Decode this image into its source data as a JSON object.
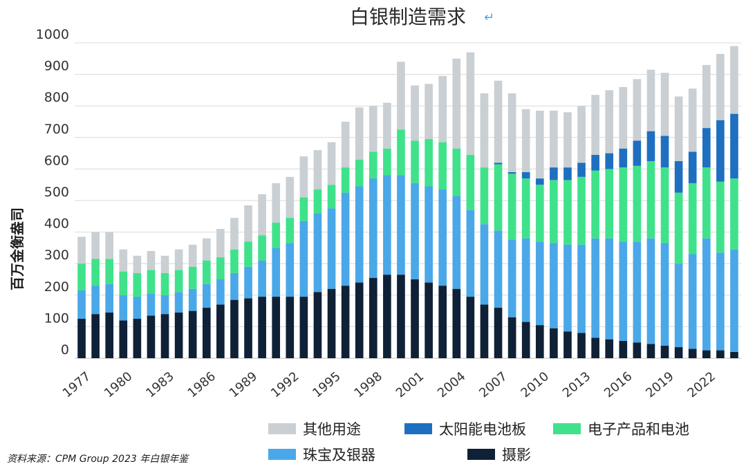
{
  "chart_data": {
    "type": "bar",
    "stacked": true,
    "title": "白银制造需求",
    "ylabel": "百万金衡盎司",
    "xlabel": "",
    "ylim": [
      0,
      1000
    ],
    "yticks": [
      0,
      100,
      200,
      300,
      400,
      500,
      600,
      700,
      800,
      900,
      1000
    ],
    "grid": true,
    "legend_position": "bottom",
    "x_tick_labels": [
      "1977",
      "1980",
      "1983",
      "1986",
      "1989",
      "1992",
      "1995",
      "1998",
      "2001",
      "2004",
      "2007",
      "2010",
      "2013",
      "2016",
      "2019",
      "2022"
    ],
    "categories": [
      "1977",
      "1978",
      "1979",
      "1980",
      "1981",
      "1982",
      "1983",
      "1984",
      "1985",
      "1986",
      "1987",
      "1988",
      "1989",
      "1990",
      "1991",
      "1992",
      "1993",
      "1994",
      "1995",
      "1996",
      "1997",
      "1998",
      "1999",
      "2000",
      "2001",
      "2002",
      "2003",
      "2004",
      "2005",
      "2006",
      "2007",
      "2008",
      "2009",
      "2010",
      "2011",
      "2012",
      "2013",
      "2014",
      "2015",
      "2016",
      "2017",
      "2018",
      "2019",
      "2020",
      "2021",
      "2022",
      "2023",
      "2024"
    ],
    "series": [
      {
        "name": "摄影",
        "color": "#0f2137",
        "values": [
          125,
          140,
          145,
          120,
          125,
          135,
          140,
          145,
          150,
          160,
          170,
          185,
          190,
          195,
          195,
          195,
          195,
          210,
          220,
          230,
          240,
          255,
          265,
          265,
          250,
          240,
          230,
          220,
          195,
          170,
          160,
          130,
          115,
          105,
          95,
          85,
          80,
          65,
          60,
          55,
          50,
          45,
          40,
          35,
          30,
          25,
          25,
          20
        ]
      },
      {
        "name": "珠宝及银器",
        "color": "#4aa8e8",
        "values": [
          90,
          90,
          90,
          80,
          70,
          70,
          60,
          65,
          70,
          75,
          80,
          85,
          100,
          115,
          155,
          170,
          240,
          250,
          255,
          295,
          305,
          315,
          315,
          315,
          305,
          305,
          305,
          295,
          275,
          255,
          245,
          245,
          265,
          265,
          270,
          275,
          280,
          315,
          320,
          315,
          320,
          335,
          325,
          265,
          300,
          355,
          310,
          325
        ]
      },
      {
        "name": "电子产品和电池",
        "color": "#3fe28a",
        "values": [
          85,
          85,
          80,
          75,
          75,
          75,
          70,
          70,
          70,
          75,
          70,
          75,
          80,
          80,
          80,
          80,
          75,
          75,
          75,
          80,
          85,
          85,
          85,
          145,
          135,
          150,
          150,
          150,
          175,
          180,
          210,
          210,
          190,
          180,
          200,
          205,
          215,
          215,
          220,
          235,
          240,
          245,
          240,
          225,
          225,
          225,
          225,
          225
        ]
      },
      {
        "name": "太阳能电池板",
        "color": "#1f6fc0",
        "values": [
          0,
          0,
          0,
          0,
          0,
          0,
          0,
          0,
          0,
          0,
          0,
          0,
          0,
          0,
          0,
          0,
          0,
          0,
          0,
          0,
          0,
          0,
          0,
          0,
          0,
          0,
          0,
          0,
          0,
          0,
          5,
          5,
          20,
          20,
          40,
          40,
          45,
          50,
          50,
          60,
          80,
          95,
          100,
          100,
          100,
          125,
          195,
          205
        ]
      },
      {
        "name": "其他用途",
        "color": "#c9cfd3",
        "values": [
          85,
          85,
          85,
          70,
          55,
          60,
          55,
          65,
          70,
          70,
          90,
          100,
          115,
          130,
          125,
          130,
          130,
          125,
          135,
          145,
          165,
          145,
          145,
          215,
          175,
          175,
          210,
          285,
          325,
          235,
          260,
          250,
          200,
          215,
          180,
          175,
          180,
          190,
          200,
          195,
          195,
          195,
          200,
          205,
          200,
          200,
          210,
          215
        ]
      }
    ]
  },
  "footer": {
    "source": "资料来源：CPM Group 2023 年白银年鉴"
  },
  "colors": {
    "axis": "#555555",
    "grid": "#d9d9d9",
    "return_mark": "#4aa8e8"
  }
}
